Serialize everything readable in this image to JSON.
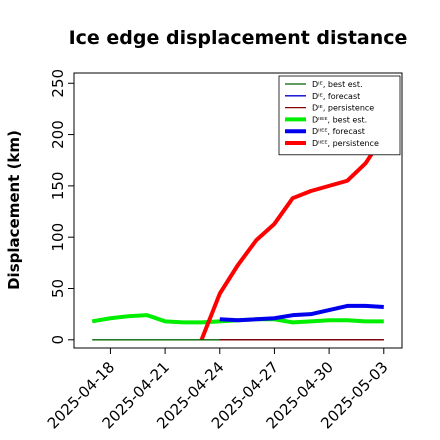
{
  "chart_data": {
    "type": "line",
    "title": "Ice edge displacement distance",
    "xlabel": "",
    "ylabel": "Displacement (km)",
    "xlim": [
      "2025-04-16",
      "2025-05-04"
    ],
    "ylim": [
      -8,
      260
    ],
    "yticks": [
      0,
      50,
      100,
      150,
      200,
      250
    ],
    "xticks": [
      {
        "date": "2025-04-18",
        "label": "2025-04-18",
        "color": "#000000"
      },
      {
        "date": "2025-04-21",
        "label": "2025-04-21",
        "color": "#000000"
      },
      {
        "date": "2025-04-24",
        "label": "2025-04-24",
        "color": "#008000"
      },
      {
        "date": "2025-04-27",
        "label": "2025-04-27",
        "color": "#000000"
      },
      {
        "date": "2025-04-30",
        "label": "2025-04-30",
        "color": "#000000"
      },
      {
        "date": "2025-05-03",
        "label": "2025-05-03",
        "color": "#000000"
      }
    ],
    "legend_placement": "top-right",
    "grid": false,
    "series": [
      {
        "name": "Dᴵᴱ, best est.",
        "color": "#006400",
        "width": 1.3,
        "x": [
          "2025-04-17",
          "2025-05-03"
        ],
        "y": [
          0,
          0
        ]
      },
      {
        "name": "Dᴵᴱ, forecast",
        "color": "#0000cd",
        "width": 1.3,
        "x": [
          "2025-04-24",
          "2025-05-03"
        ],
        "y": [
          0,
          0
        ]
      },
      {
        "name": "Dᴵᴱ, persistence",
        "color": "#8b0000",
        "width": 1.3,
        "x": [
          "2025-04-24",
          "2025-05-03"
        ],
        "y": [
          0,
          0
        ]
      },
      {
        "name": "Dᴵᴵᴱᴱ, best est.",
        "color": "#00ee00",
        "width": 4,
        "x": [
          "2025-04-17",
          "2025-04-18",
          "2025-04-19",
          "2025-04-20",
          "2025-04-21",
          "2025-04-22",
          "2025-04-23",
          "2025-04-24",
          "2025-04-25",
          "2025-04-26",
          "2025-04-27",
          "2025-04-28",
          "2025-04-29",
          "2025-04-30",
          "2025-05-01",
          "2025-05-02",
          "2025-05-03"
        ],
        "y": [
          18,
          21,
          23,
          24,
          18,
          17,
          17,
          18,
          19,
          20,
          20,
          17,
          18,
          19,
          19,
          18,
          18
        ]
      },
      {
        "name": "Dᴵᴵᴱᴱ, forecast",
        "color": "#0000ee",
        "width": 4,
        "x": [
          "2025-04-24",
          "2025-04-25",
          "2025-04-26",
          "2025-04-27",
          "2025-04-28",
          "2025-04-29",
          "2025-04-30",
          "2025-05-01",
          "2025-05-02",
          "2025-05-03"
        ],
        "y": [
          20,
          19,
          20,
          21,
          24,
          25,
          29,
          33,
          33,
          32
        ]
      },
      {
        "name": "Dᴵᴵᴱᴱ, persistence",
        "color": "#ff0000",
        "width": 4,
        "x": [
          "2025-04-23",
          "2025-04-24",
          "2025-04-25",
          "2025-04-26",
          "2025-04-27",
          "2025-04-28",
          "2025-04-29",
          "2025-04-30",
          "2025-05-01",
          "2025-05-02",
          "2025-05-03"
        ],
        "y": [
          0,
          45,
          73,
          97,
          113,
          138,
          145,
          150,
          155,
          172,
          199
        ]
      }
    ]
  }
}
